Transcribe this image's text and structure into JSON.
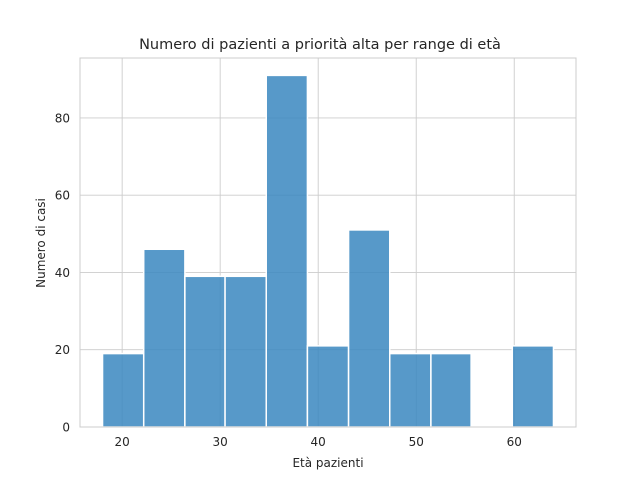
{
  "chart_data": {
    "type": "bar",
    "title": "Numero di pazienti a priorità alta per range di età",
    "xlabel": "Età pazienti",
    "ylabel": "Numero di casi",
    "bin_edges": [
      18,
      22.2,
      26.4,
      30.5,
      34.7,
      38.9,
      43.1,
      47.3,
      51.5,
      55.6,
      59.8,
      64
    ],
    "values": [
      19,
      46,
      39,
      39,
      91,
      21,
      51,
      19,
      19,
      0,
      21
    ],
    "xlim": [
      15.7,
      66.3
    ],
    "ylim": [
      0,
      95.5
    ],
    "xticks": [
      20,
      30,
      40,
      50,
      60
    ],
    "yticks": [
      0,
      20,
      40,
      60,
      80
    ],
    "grid": true,
    "bar_color": "#3a87c0",
    "bar_edge_color": "#ffffff"
  }
}
